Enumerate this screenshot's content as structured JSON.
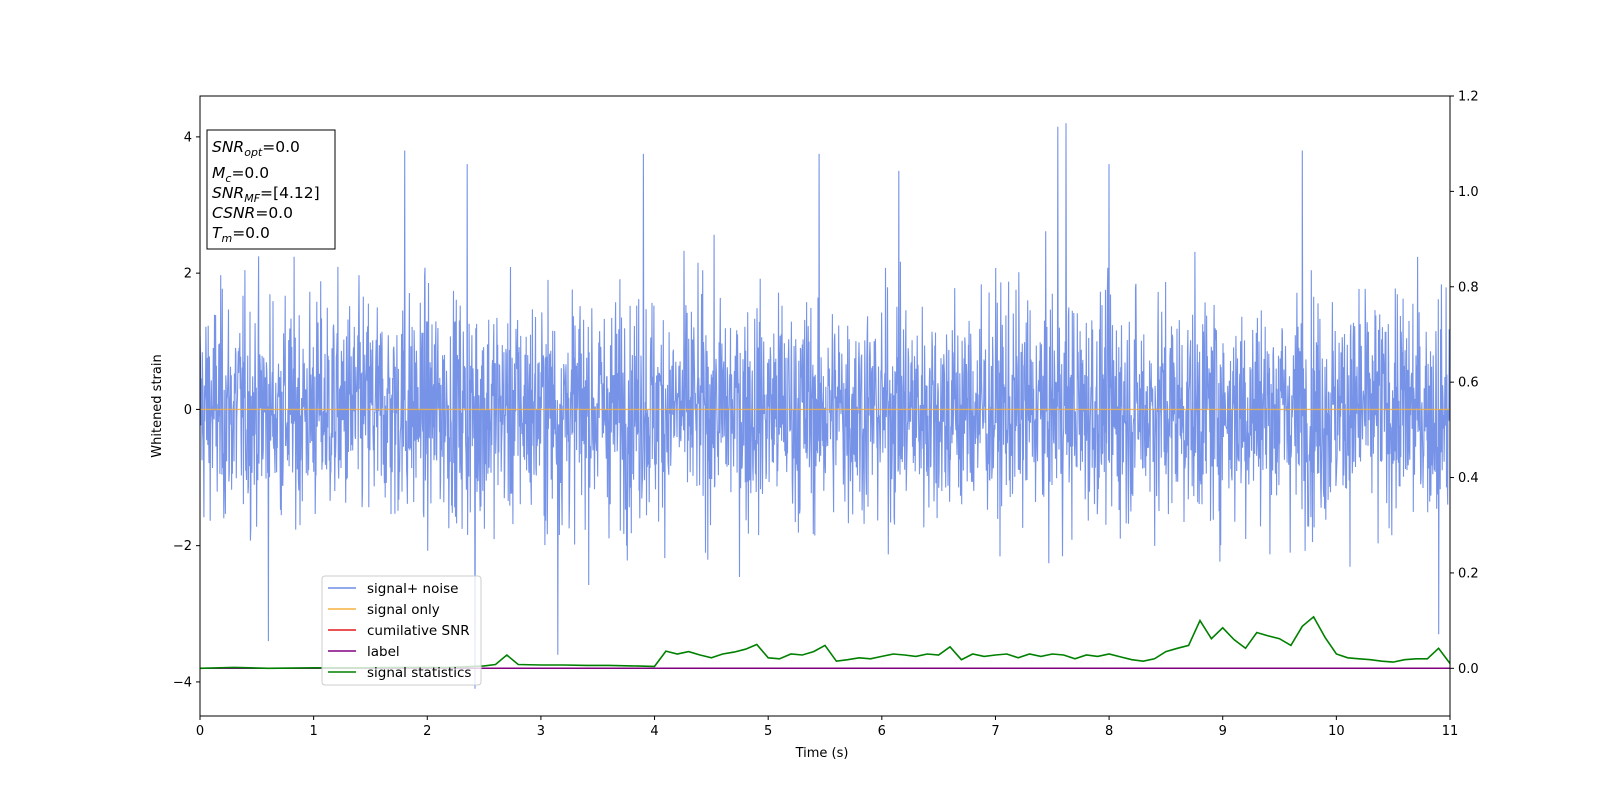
{
  "chart_data": {
    "type": "line",
    "xlabel": "Time (s)",
    "ylabel": "Whitened strain",
    "xlim": [
      0,
      11
    ],
    "ylim_left": [
      -4.5,
      4.6
    ],
    "ylim_right": [
      -0.1,
      1.2
    ],
    "x_ticks": [
      "0",
      "1",
      "2",
      "3",
      "4",
      "5",
      "6",
      "7",
      "8",
      "9",
      "10",
      "11"
    ],
    "y_ticks_left": [
      "−4",
      "−2",
      "0",
      "2",
      "4"
    ],
    "y_ticks_right": [
      "0.0",
      "0.2",
      "0.4",
      "0.6",
      "0.8",
      "1.0",
      "1.2"
    ],
    "y_tick_values_left": [
      -4,
      -2,
      0,
      2,
      4
    ],
    "y_tick_values_right": [
      0.0,
      0.2,
      0.4,
      0.6,
      0.8,
      1.0,
      1.2
    ],
    "legend_position": "lower-left",
    "series": [
      {
        "name": "signal+ noise",
        "axis": "left",
        "color": "#6f8de6",
        "style": "dense noise, amplitude about ±2 with spikes to about ±4",
        "spikes": [
          [
            0.6,
            -3.4
          ],
          [
            1.8,
            3.8
          ],
          [
            2.35,
            3.6
          ],
          [
            2.42,
            -4.1
          ],
          [
            3.15,
            -3.6
          ],
          [
            3.9,
            3.75
          ],
          [
            5.45,
            3.75
          ],
          [
            6.15,
            3.5
          ],
          [
            7.55,
            4.15
          ],
          [
            7.62,
            4.2
          ],
          [
            8.0,
            3.6
          ],
          [
            9.7,
            3.8
          ],
          [
            10.9,
            -3.3
          ]
        ]
      },
      {
        "name": "signal only",
        "axis": "left",
        "color": "#f5b041",
        "x": [
          0,
          11
        ],
        "y": [
          0,
          0
        ]
      },
      {
        "name": "cumilative SNR",
        "axis": "right",
        "color": "#e41a1c",
        "x": [
          0,
          11
        ],
        "y": [
          0,
          0
        ]
      },
      {
        "name": "label",
        "axis": "right",
        "color": "#800080",
        "x": [
          0,
          11
        ],
        "y": [
          0,
          0
        ]
      },
      {
        "name": "signal statistics",
        "axis": "right",
        "color": "#008000",
        "x": [
          0,
          0.3,
          0.6,
          1.0,
          1.4,
          1.8,
          2.2,
          2.5,
          2.6,
          2.7,
          2.8,
          3.0,
          3.2,
          3.4,
          3.6,
          3.8,
          4.0,
          4.1,
          4.2,
          4.3,
          4.4,
          4.5,
          4.6,
          4.7,
          4.8,
          4.9,
          5.0,
          5.1,
          5.2,
          5.3,
          5.4,
          5.5,
          5.6,
          5.7,
          5.8,
          5.9,
          6.0,
          6.1,
          6.2,
          6.3,
          6.4,
          6.5,
          6.6,
          6.7,
          6.8,
          6.9,
          7.0,
          7.1,
          7.2,
          7.3,
          7.4,
          7.5,
          7.6,
          7.7,
          7.8,
          7.9,
          8.0,
          8.1,
          8.2,
          8.3,
          8.4,
          8.5,
          8.6,
          8.7,
          8.8,
          8.9,
          9.0,
          9.1,
          9.2,
          9.3,
          9.4,
          9.5,
          9.6,
          9.7,
          9.8,
          9.9,
          10.0,
          10.1,
          10.2,
          10.3,
          10.4,
          10.5,
          10.6,
          10.7,
          10.8,
          10.9,
          11.0
        ],
        "y": [
          0.0,
          0.002,
          0.0,
          0.001,
          0.001,
          0.002,
          0.002,
          0.005,
          0.008,
          0.028,
          0.008,
          0.007,
          0.007,
          0.006,
          0.006,
          0.005,
          0.004,
          0.036,
          0.03,
          0.035,
          0.028,
          0.022,
          0.03,
          0.034,
          0.04,
          0.05,
          0.022,
          0.02,
          0.03,
          0.028,
          0.035,
          0.048,
          0.015,
          0.018,
          0.022,
          0.02,
          0.025,
          0.03,
          0.028,
          0.025,
          0.03,
          0.028,
          0.045,
          0.018,
          0.03,
          0.025,
          0.028,
          0.03,
          0.022,
          0.03,
          0.025,
          0.03,
          0.028,
          0.02,
          0.028,
          0.025,
          0.03,
          0.024,
          0.018,
          0.015,
          0.02,
          0.035,
          0.042,
          0.048,
          0.1,
          0.062,
          0.085,
          0.06,
          0.042,
          0.075,
          0.068,
          0.062,
          0.048,
          0.088,
          0.108,
          0.065,
          0.03,
          0.022,
          0.02,
          0.018,
          0.015,
          0.013,
          0.018,
          0.02,
          0.02,
          0.042,
          0.01
        ]
      }
    ],
    "annotation": {
      "snr_opt": "=0.0",
      "mc": "=0.0",
      "snr_mf": "=[4.12]",
      "csnr": "=0.0",
      "tm": "=0.0"
    }
  }
}
